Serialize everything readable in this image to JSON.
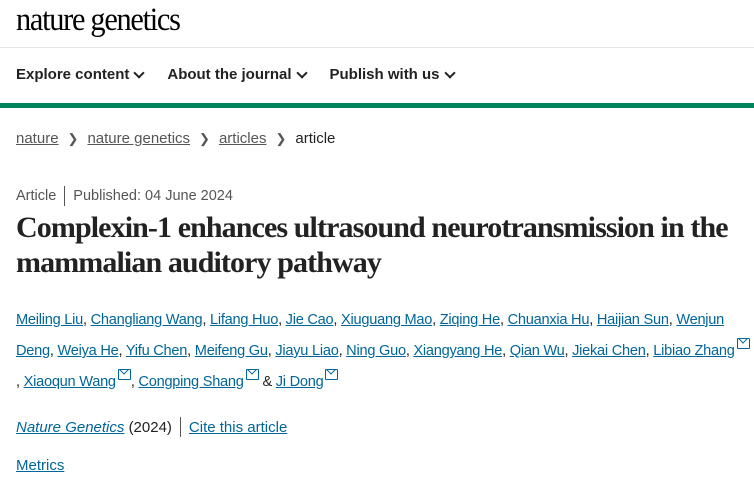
{
  "logo": "nature genetics",
  "nav": [
    {
      "label": "Explore content"
    },
    {
      "label": "About the journal"
    },
    {
      "label": "Publish with us"
    }
  ],
  "breadcrumb": [
    {
      "label": "nature"
    },
    {
      "label": "nature genetics"
    },
    {
      "label": "articles"
    }
  ],
  "breadcrumb_current": "article",
  "article": {
    "type": "Article",
    "published": "Published: 04 June 2024",
    "title": "Complexin-1 enhances ultrasound neurotransmission in the mammalian auditory pathway",
    "authors": [
      {
        "name": "Meiling Liu",
        "sep": ", "
      },
      {
        "name": "Changliang Wang",
        "sep": ", "
      },
      {
        "name": "Lifang Huo",
        "sep": ", "
      },
      {
        "name": "Jie Cao",
        "sep": ", "
      },
      {
        "name": "Xiuguang Mao",
        "sep": ", "
      },
      {
        "name": "Ziqing He",
        "sep": ", "
      },
      {
        "name": "Chuanxia Hu",
        "sep": ", "
      },
      {
        "name": "Haijian Sun",
        "sep": ", "
      },
      {
        "name": "Wenjun Deng",
        "sep": ", "
      },
      {
        "name": "Weiya He",
        "sep": ", "
      },
      {
        "name": "Yifu Chen",
        "sep": ", "
      },
      {
        "name": "Meifeng Gu",
        "sep": ", "
      },
      {
        "name": "Jiayu Liao",
        "sep": ", "
      },
      {
        "name": "Ning Guo",
        "sep": ", "
      },
      {
        "name": "Xiangyang He",
        "sep": ", "
      },
      {
        "name": "Qian Wu",
        "sep": ", "
      },
      {
        "name": "Jiekai Chen",
        "sep": ", "
      },
      {
        "name": "Libiao Zhang",
        "mail": true,
        "sep": ", "
      },
      {
        "name": "Xiaoqun Wang",
        "mail": true,
        "sep": ", "
      },
      {
        "name": "Congping Shang",
        "mail": true,
        "sep": " & "
      },
      {
        "name": "Ji Dong",
        "mail": true,
        "sep": ""
      }
    ],
    "journal": "Nature Genetics",
    "year": "(2024)",
    "cite": "Cite this article",
    "metrics": "Metrics"
  },
  "colors": {
    "accent": "#00845c",
    "link": "#006699"
  }
}
